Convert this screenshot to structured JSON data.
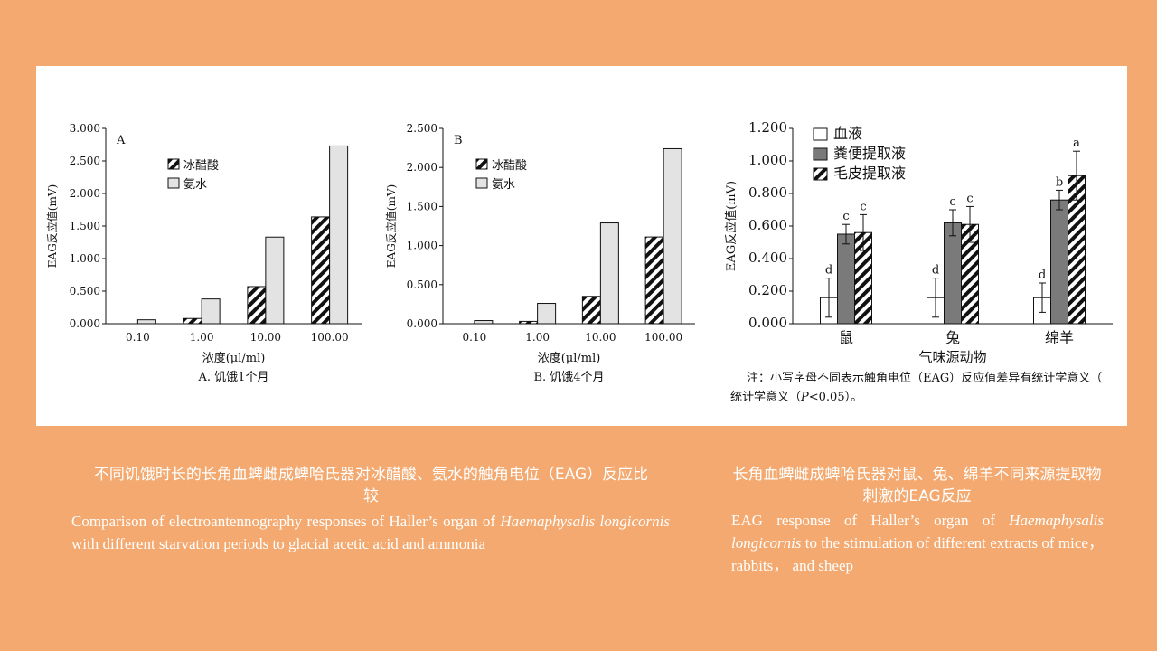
{
  "chart_data": [
    {
      "type": "bar",
      "panel_letter": "A",
      "ylabel": "EAG反应值(mV)",
      "xlabel": "浓度(μl/ml)",
      "caption": "A. 饥饿1个月",
      "categories": [
        "0.10",
        "1.00",
        "10.00",
        "100.00"
      ],
      "yticks": [
        "0.000",
        "0.500",
        "1.000",
        "1.500",
        "2.000",
        "2.500",
        "3.000"
      ],
      "ylim": [
        0,
        3
      ],
      "series": [
        {
          "name": "冰醋酸",
          "values": [
            0,
            0.08,
            0.57,
            1.64
          ]
        },
        {
          "name": "氨水",
          "values": [
            0.06,
            0.38,
            1.33,
            2.73
          ]
        }
      ]
    },
    {
      "type": "bar",
      "panel_letter": "B",
      "ylabel": "EAG反应值(mV)",
      "xlabel": "浓度(μl/ml)",
      "caption": "B. 饥饿4个月",
      "categories": [
        "0.10",
        "1.00",
        "10.00",
        "100.00"
      ],
      "yticks": [
        "0.000",
        "0.500",
        "1.000",
        "1.500",
        "2.000",
        "2.500"
      ],
      "ylim": [
        0,
        2.5
      ],
      "series": [
        {
          "name": "冰醋酸",
          "values": [
            0,
            0.03,
            0.35,
            1.11
          ]
        },
        {
          "name": "氨水",
          "values": [
            0.04,
            0.26,
            1.29,
            2.24
          ]
        }
      ]
    },
    {
      "type": "bar",
      "ylabel": "EAG反应值(mV)",
      "xlabel": "气味源动物",
      "categories": [
        "鼠",
        "兔",
        "绵羊"
      ],
      "yticks": [
        "0.000",
        "0.200",
        "0.400",
        "0.600",
        "0.800",
        "1.000",
        "1.200"
      ],
      "ylim": [
        0,
        1.2
      ],
      "series": [
        {
          "name": "血液",
          "values": [
            0.16,
            0.16,
            0.16
          ],
          "errors": [
            0.12,
            0.12,
            0.09
          ],
          "letters": [
            "d",
            "d",
            "d"
          ]
        },
        {
          "name": "粪便提取液",
          "values": [
            0.55,
            0.62,
            0.76
          ],
          "errors": [
            0.06,
            0.08,
            0.06
          ],
          "letters": [
            "c",
            "c",
            "b"
          ]
        },
        {
          "name": "毛皮提取液",
          "values": [
            0.56,
            0.61,
            0.91
          ],
          "errors": [
            0.11,
            0.11,
            0.15
          ],
          "letters": [
            "c",
            "c",
            "a"
          ]
        }
      ],
      "note_prefix": "注：小写字母不同表示触角电位（EAG）反应值差异有统计学意义（",
      "note_p": "P",
      "note_suffix": "<0.05）。"
    }
  ],
  "captions": {
    "left_cn": "不同饥饿时长的长角血蜱雌成蜱哈氏器对冰醋酸、氨水的触角电位（EAG）反应比较",
    "left_en_1": "Comparison of electroantennography responses of Haller’s organ of ",
    "left_en_italic": "Haemaphysalis longicornis",
    "left_en_2": " with different starvation periods to glacial acetic acid and ammonia",
    "right_cn": "长角血蜱雌成蜱哈氏器对鼠、兔、绵羊不同来源提取物刺激的EAG反应",
    "right_en_1": "EAG response of Haller’s organ of ",
    "right_en_italic": "Haemaphysalis longicornis",
    "right_en_2": " to the stimulation of different extracts of mice， rabbits， and sheep"
  },
  "colors": {
    "background": "#F3A96F",
    "panel": "#FFFFFF",
    "bar_light": "#E3E3E3",
    "bar_dark": "#7A7A7A",
    "caption_text": "#FFFFFF"
  }
}
